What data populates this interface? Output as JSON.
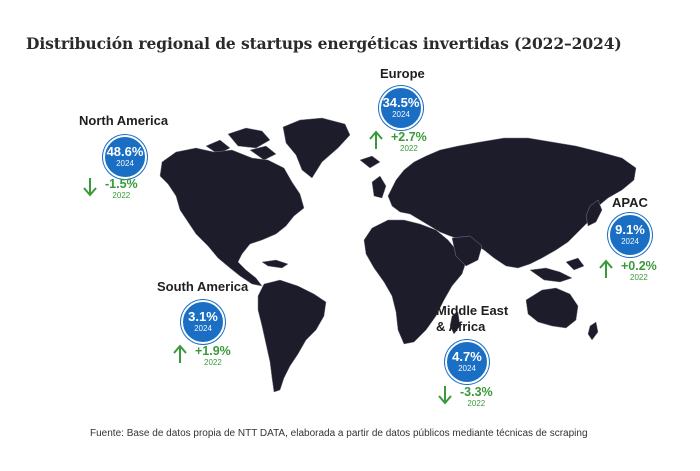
{
  "title": "Distribución regional de startups energéticas invertidas (2022–2024)",
  "source": "Fuente: Base de datos propia de NTT DATA, elaborada a partir de datos públicos mediante técnicas de scraping",
  "colors": {
    "circle": "#1a6fc4",
    "up": "#3a9a3a",
    "down": "#3a9a3a",
    "map": "#1c1c2a"
  },
  "regions": {
    "north_america": {
      "name": "North America",
      "share": "48.6%",
      "share_year": "2024",
      "change": "-1.5%",
      "change_year": "2022",
      "direction": "down"
    },
    "europe": {
      "name": "Europe",
      "share": "34.5%",
      "share_year": "2024",
      "change": "+2.7%",
      "change_year": "2022",
      "direction": "up"
    },
    "apac": {
      "name": "APAC",
      "share": "9.1%",
      "share_year": "2024",
      "change": "+0.2%",
      "change_year": "2022",
      "direction": "up"
    },
    "south_america": {
      "name": "South America",
      "share": "3.1%",
      "share_year": "2024",
      "change": "+1.9%",
      "change_year": "2022",
      "direction": "up"
    },
    "mea": {
      "name_line1": "Middle East",
      "name_line2": "& Africa",
      "share": "4.7%",
      "share_year": "2024",
      "change": "-3.3%",
      "change_year": "2022",
      "direction": "down"
    }
  }
}
